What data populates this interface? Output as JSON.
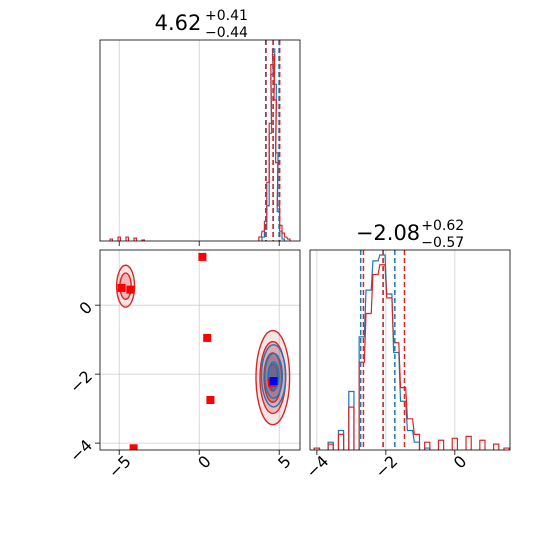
{
  "chart_data": {
    "type": "corner",
    "colors": {
      "series_a": "#1f77b4",
      "series_b": "#d62728",
      "marker_blue": "#0000ff",
      "marker_red": "#ff0000",
      "grid": "#b0b0b0"
    },
    "panels": [
      {
        "id": "hist-param1",
        "type": "histogram",
        "title": {
          "value": "4.62",
          "plus": "+0.41",
          "minus": "−0.44"
        },
        "xlim": [
          -6.2,
          6.3
        ],
        "x_ticks": [
          -5,
          0,
          5
        ],
        "x_tick_labels": [
          "",
          "",
          ""
        ],
        "series": [
          {
            "color": "series_a",
            "bins": [
              [
                4.0,
                0.02
              ],
              [
                4.15,
                0.06
              ],
              [
                4.3,
                0.18
              ],
              [
                4.45,
                0.55
              ],
              [
                4.55,
                0.85
              ],
              [
                4.65,
                0.98
              ],
              [
                4.75,
                0.8
              ],
              [
                4.85,
                0.45
              ],
              [
                4.95,
                0.15
              ],
              [
                5.1,
                0.05
              ],
              [
                5.25,
                0.01
              ]
            ]
          },
          {
            "color": "series_b",
            "bins": [
              [
                -5.5,
                0.01
              ],
              [
                -5.0,
                0.02
              ],
              [
                -4.5,
                0.02
              ],
              [
                -4.0,
                0.015
              ],
              [
                -3.5,
                0.005
              ],
              [
                3.8,
                0.02
              ],
              [
                4.0,
                0.05
              ],
              [
                4.15,
                0.1
              ],
              [
                4.3,
                0.3
              ],
              [
                4.45,
                0.6
              ],
              [
                4.55,
                0.9
              ],
              [
                4.65,
                0.95
              ],
              [
                4.75,
                0.72
              ],
              [
                4.85,
                0.4
              ],
              [
                4.95,
                0.18
              ],
              [
                5.1,
                0.08
              ],
              [
                5.25,
                0.04
              ],
              [
                5.4,
                0.02
              ],
              [
                5.6,
                0.01
              ]
            ]
          }
        ],
        "quantiles": [
          {
            "color": "series_a",
            "values": [
              4.18,
              4.62,
              4.99
            ]
          },
          {
            "color": "series_b",
            "values": [
              4.16,
              4.62,
              5.03
            ]
          }
        ]
      },
      {
        "id": "hist-param2",
        "type": "histogram",
        "title": {
          "value": "−2.08",
          "plus": "+0.62",
          "minus": "−0.57"
        },
        "xlim": [
          -4.2,
          1.6
        ],
        "x_ticks": [
          -4,
          -2,
          0
        ],
        "x_tick_labels": [
          "−4",
          "−2",
          "0"
        ],
        "series": [
          {
            "color": "series_a",
            "bins": [
              [
                -4.0,
                0.01
              ],
              [
                -3.6,
                0.04
              ],
              [
                -3.3,
                0.1
              ],
              [
                -3.0,
                0.3
              ],
              [
                -2.7,
                0.58
              ],
              [
                -2.5,
                0.82
              ],
              [
                -2.3,
                0.97
              ],
              [
                -2.1,
                1.0
              ],
              [
                -1.9,
                0.8
              ],
              [
                -1.7,
                0.5
              ],
              [
                -1.5,
                0.25
              ],
              [
                -1.3,
                0.1
              ],
              [
                -1.1,
                0.04
              ],
              [
                -0.8,
                0.01
              ]
            ]
          },
          {
            "color": "series_b",
            "bins": [
              [
                -4.0,
                0.01
              ],
              [
                -3.6,
                0.03
              ],
              [
                -3.3,
                0.08
              ],
              [
                -3.0,
                0.22
              ],
              [
                -2.7,
                0.45
              ],
              [
                -2.5,
                0.7
              ],
              [
                -2.3,
                0.9
              ],
              [
                -2.1,
                0.95
              ],
              [
                -1.9,
                0.78
              ],
              [
                -1.7,
                0.55
              ],
              [
                -1.5,
                0.32
              ],
              [
                -1.3,
                0.16
              ],
              [
                -1.1,
                0.08
              ],
              [
                -0.8,
                0.04
              ],
              [
                -0.4,
                0.05
              ],
              [
                0.0,
                0.06
              ],
              [
                0.4,
                0.07
              ],
              [
                0.8,
                0.05
              ],
              [
                1.2,
                0.03
              ],
              [
                1.5,
                0.01
              ]
            ]
          }
        ],
        "quantiles": [
          {
            "color": "series_a",
            "values": [
              -2.73,
              -2.08,
              -1.74
            ]
          },
          {
            "color": "series_b",
            "values": [
              -2.65,
              -2.08,
              -1.46
            ]
          }
        ]
      },
      {
        "id": "joint-param1-param2",
        "type": "scatter-contour",
        "xlim": [
          -6.2,
          6.3
        ],
        "ylim": [
          -4.2,
          1.6
        ],
        "x_ticks": [
          -5,
          0,
          5
        ],
        "x_tick_labels": [
          "−5",
          "0",
          "5"
        ],
        "y_ticks": [
          -4,
          -2,
          0
        ],
        "y_tick_labels": [
          "−4",
          "−2",
          "0"
        ],
        "contours": [
          {
            "color": "series_b",
            "center": [
              4.6,
              -2.1
            ],
            "sd": [
              0.5,
              0.65
            ],
            "levels": [
              2.1,
              1.6,
              1.1,
              0.6
            ]
          },
          {
            "color": "series_a",
            "center": [
              4.65,
              -2.05
            ],
            "sd": [
              0.42,
              0.5
            ],
            "levels": [
              1.8,
              1.3,
              0.8
            ]
          },
          {
            "color": "series_b",
            "center": [
              -4.6,
              0.55
            ],
            "sd": [
              0.35,
              0.38
            ],
            "levels": [
              1.6,
              1.0
            ]
          }
        ],
        "markers": [
          {
            "color": "marker_red",
            "x": 0.2,
            "y": 1.4
          },
          {
            "color": "marker_red",
            "x": 0.5,
            "y": -0.95
          },
          {
            "color": "marker_red",
            "x": 0.7,
            "y": -2.75
          },
          {
            "color": "marker_red",
            "x": -4.1,
            "y": -4.15
          },
          {
            "color": "marker_red",
            "x": -4.3,
            "y": 0.45
          },
          {
            "color": "marker_red",
            "x": -4.85,
            "y": 0.5
          },
          {
            "color": "marker_red",
            "x": 4.55,
            "y": -2.25
          },
          {
            "color": "marker_blue",
            "x": 4.65,
            "y": -2.2
          }
        ]
      }
    ]
  }
}
